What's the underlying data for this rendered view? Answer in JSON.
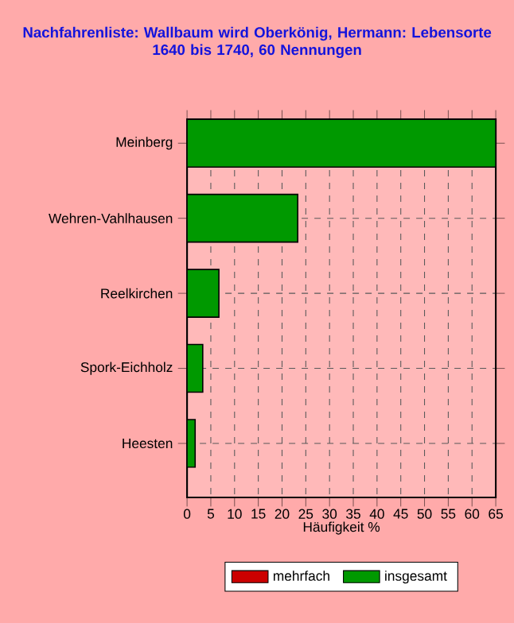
{
  "chart_data": {
    "type": "bar",
    "orientation": "horizontal",
    "title": "Nachfahrenliste: Wallbaum wird Oberkönig, Hermann: Lebensorte",
    "subtitle": "1640 bis 1740, 60 Nennungen",
    "xlabel": "Häufigkeit %",
    "categories": [
      "Meinberg",
      "Wehren-Vahlhausen",
      "Reelkirchen",
      "Spork-Eichholz",
      "Heesten"
    ],
    "series": [
      {
        "name": "mehrfach",
        "color": "#cc0000",
        "values": [
          null,
          null,
          null,
          null,
          null
        ]
      },
      {
        "name": "insgesamt",
        "color": "#009900",
        "values": [
          65,
          23.3,
          6.7,
          3.3,
          1.7
        ]
      }
    ],
    "xlim": [
      0,
      65
    ],
    "xticks": [
      0,
      5,
      10,
      15,
      20,
      25,
      30,
      35,
      40,
      45,
      50,
      55,
      60,
      65
    ],
    "grid": true,
    "legend": "bottom"
  }
}
